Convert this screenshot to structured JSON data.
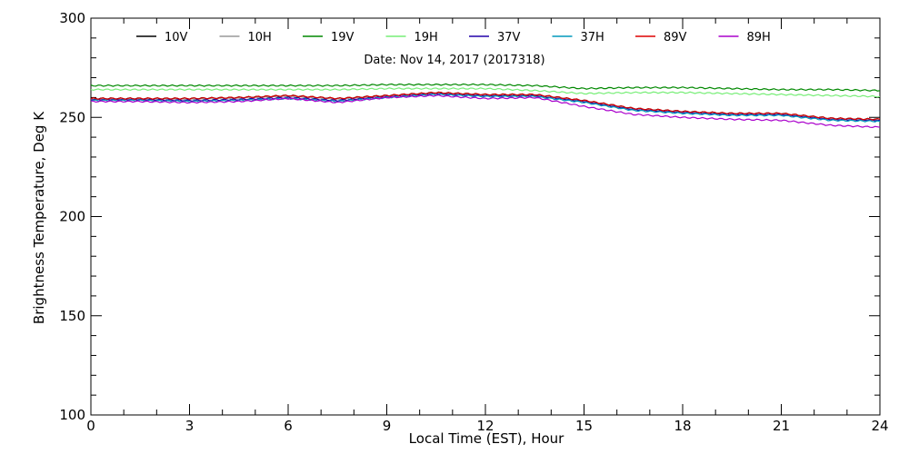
{
  "chart_data": {
    "type": "line",
    "title": "",
    "annotation": "Date: Nov 14, 2017 (2017318)",
    "xlabel": "Local Time (EST), Hour",
    "ylabel": "Brightness Temperature, Deg K",
    "xlim": [
      0,
      24
    ],
    "ylim": [
      100,
      300
    ],
    "xticks": [
      0,
      3,
      6,
      9,
      12,
      15,
      18,
      21,
      24
    ],
    "yticks": [
      100,
      150,
      200,
      250,
      300
    ],
    "grid": false,
    "legend_position": "top",
    "x": [
      0,
      1.5,
      3,
      4.5,
      6,
      7.5,
      9,
      10.5,
      12,
      13.5,
      15,
      16.5,
      18,
      19.5,
      21,
      22.5,
      24
    ],
    "series": [
      {
        "name": "10V",
        "color": "#000000",
        "values": [
          259.5,
          259.5,
          259.5,
          260,
          261,
          259.5,
          261,
          262.5,
          261.5,
          261.5,
          258.5,
          254.5,
          253,
          252,
          252,
          249.5,
          249
        ]
      },
      {
        "name": "10H",
        "color": "#999999",
        "values": [
          259,
          259,
          259,
          259.5,
          260.5,
          259,
          260.5,
          262,
          261,
          261,
          258,
          254,
          252.5,
          251.5,
          251.5,
          249,
          248.5
        ]
      },
      {
        "name": "19V",
        "color": "#008800",
        "values": [
          266,
          266,
          266,
          266,
          266,
          266,
          266.5,
          266.5,
          266.5,
          266,
          264.5,
          265,
          265,
          264.5,
          264,
          264,
          263.5
        ]
      },
      {
        "name": "19H",
        "color": "#77ee77",
        "values": [
          264,
          264,
          264,
          264,
          264,
          264,
          264.5,
          264.5,
          264.5,
          263.5,
          262,
          262.5,
          262.5,
          262,
          261.5,
          261,
          260.5
        ]
      },
      {
        "name": "37V",
        "color": "#2200aa",
        "values": [
          259,
          259,
          258.5,
          259,
          260,
          258.5,
          260.5,
          262,
          261,
          261,
          258,
          254,
          252.5,
          251.5,
          251.5,
          249,
          248.5
        ]
      },
      {
        "name": "37H",
        "color": "#0099bb",
        "values": [
          258.5,
          258.5,
          258,
          258.5,
          259.5,
          258,
          260,
          261.5,
          260.5,
          260.5,
          257.5,
          253.5,
          252,
          251,
          251,
          248.5,
          248
        ]
      },
      {
        "name": "89V",
        "color": "#dd0000",
        "values": [
          259.5,
          259.5,
          259.5,
          260,
          261,
          259.5,
          261,
          262.5,
          261.5,
          261.5,
          258.5,
          254.5,
          253,
          252,
          252,
          249.5,
          249
        ]
      },
      {
        "name": "89H",
        "color": "#aa00cc",
        "values": [
          258,
          258,
          257.5,
          258,
          259.5,
          257.5,
          260,
          261,
          259.5,
          260,
          255.5,
          251.5,
          250,
          249,
          248.5,
          246,
          245
        ]
      }
    ]
  }
}
